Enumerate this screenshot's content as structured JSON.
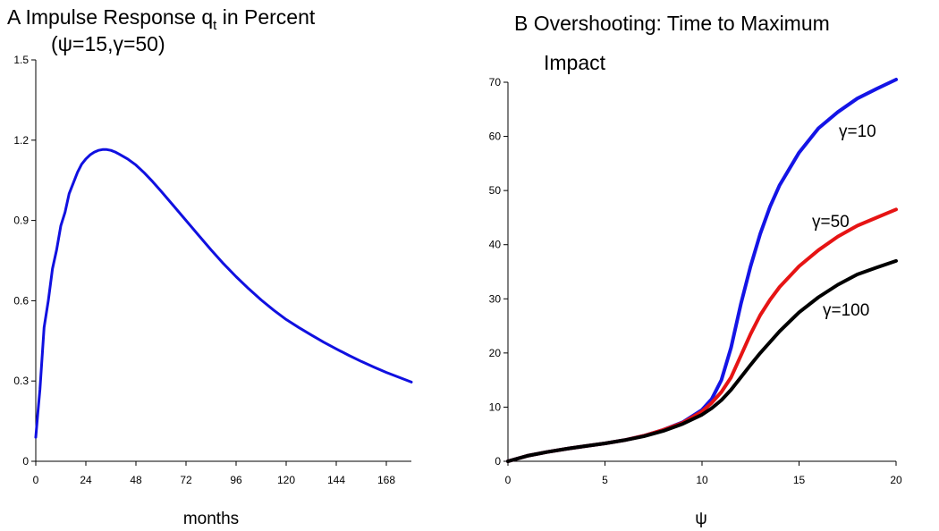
{
  "chart_data": [
    {
      "type": "line",
      "panel": "A",
      "title_line1": "Impulse Response q",
      "title_sub": "t",
      "title_line1_suffix": " in Percent",
      "title_line2": "(ψ=15,γ=50)",
      "xlabel": "months",
      "ylabel": "",
      "xlim": [
        0,
        180
      ],
      "ylim": [
        0,
        1.5
      ],
      "xticks": [
        "0",
        "24",
        "48",
        "72",
        "96",
        "120",
        "144",
        "168"
      ],
      "xtick_values": [
        0,
        24,
        48,
        72,
        96,
        120,
        144,
        168
      ],
      "yticks": [
        "0",
        "0.3",
        "0.6",
        "0.9",
        "1.2",
        "1.5"
      ],
      "ytick_values": [
        0,
        0.3,
        0.6,
        0.9,
        1.2,
        1.5
      ],
      "series": [
        {
          "color": "#1010e0",
          "x": [
            0,
            1,
            2,
            4,
            6,
            8,
            10,
            12,
            14,
            16,
            18,
            20,
            22,
            24,
            26,
            28,
            30,
            32,
            34,
            36,
            38,
            40,
            44,
            48,
            52,
            56,
            60,
            66,
            72,
            78,
            84,
            90,
            96,
            102,
            108,
            114,
            120,
            126,
            132,
            138,
            144,
            150,
            156,
            162,
            168,
            174,
            180
          ],
          "y": [
            0.09,
            0.18,
            0.27,
            0.5,
            0.6,
            0.72,
            0.79,
            0.88,
            0.93,
            1.0,
            1.04,
            1.08,
            1.11,
            1.13,
            1.145,
            1.155,
            1.162,
            1.165,
            1.165,
            1.162,
            1.156,
            1.148,
            1.13,
            1.107,
            1.078,
            1.045,
            1.01,
            0.955,
            0.9,
            0.845,
            0.79,
            0.738,
            0.69,
            0.645,
            0.603,
            0.565,
            0.53,
            0.5,
            0.472,
            0.445,
            0.42,
            0.396,
            0.373,
            0.352,
            0.332,
            0.314,
            0.296
          ]
        }
      ]
    },
    {
      "type": "line",
      "panel": "B",
      "title_line1": "B Overshooting: Time to Maximum",
      "title_line2": "Impact",
      "xlabel": "ψ",
      "ylabel": "",
      "xlim": [
        0,
        20
      ],
      "ylim": [
        0,
        70
      ],
      "xticks": [
        "0",
        "5",
        "10",
        "15",
        "20"
      ],
      "xtick_values": [
        0,
        5,
        10,
        15,
        20
      ],
      "yticks": [
        "0",
        "10",
        "20",
        "30",
        "40",
        "50",
        "60",
        "70"
      ],
      "ytick_values": [
        0,
        10,
        20,
        30,
        40,
        50,
        60,
        70
      ],
      "series": [
        {
          "name": "γ=10",
          "color": "#1414e6",
          "x": [
            0,
            1,
            2,
            3,
            4,
            5,
            6,
            7,
            8,
            9,
            10,
            10.5,
            11,
            11.5,
            12,
            12.5,
            13,
            13.5,
            14,
            15,
            16,
            17,
            18,
            19,
            20
          ],
          "y": [
            0,
            1,
            1.7,
            2.3,
            2.8,
            3.3,
            3.9,
            4.7,
            5.8,
            7.2,
            9.5,
            11.5,
            15,
            21,
            29,
            36,
            42,
            47,
            51,
            57,
            61.5,
            64.5,
            67,
            68.8,
            70.5
          ]
        },
        {
          "name": "γ=50",
          "color": "#e61414",
          "x": [
            0,
            1,
            2,
            3,
            4,
            5,
            6,
            7,
            8,
            9,
            10,
            10.5,
            11,
            11.5,
            12,
            12.5,
            13,
            13.5,
            14,
            15,
            16,
            17,
            18,
            19,
            20
          ],
          "y": [
            0,
            1,
            1.7,
            2.3,
            2.8,
            3.3,
            3.9,
            4.7,
            5.8,
            7.1,
            9.2,
            10.8,
            12.8,
            15.5,
            19.5,
            23.5,
            27,
            29.8,
            32.2,
            36,
            39,
            41.5,
            43.5,
            45,
            46.5
          ]
        },
        {
          "name": "γ=100",
          "color": "#000000",
          "x": [
            0,
            1,
            2,
            3,
            4,
            5,
            6,
            7,
            8,
            9,
            10,
            10.5,
            11,
            11.5,
            12,
            12.5,
            13,
            13.5,
            14,
            15,
            16,
            17,
            18,
            19,
            20
          ],
          "y": [
            0,
            1,
            1.7,
            2.3,
            2.8,
            3.3,
            3.9,
            4.6,
            5.6,
            6.9,
            8.6,
            9.8,
            11.3,
            13.2,
            15.5,
            17.8,
            20,
            22,
            24,
            27.5,
            30.3,
            32.6,
            34.5,
            35.8,
            37
          ]
        }
      ]
    }
  ]
}
